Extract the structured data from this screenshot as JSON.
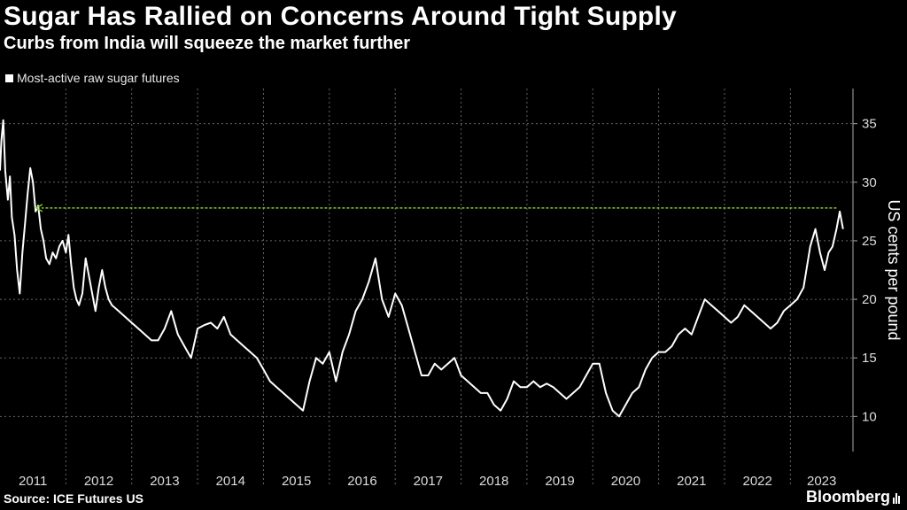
{
  "header": {
    "title": "Sugar Has Rallied on Concerns Around Tight Supply",
    "subtitle": "Curbs from India will squeeze the market further"
  },
  "legend": {
    "label": "Most-active raw sugar futures"
  },
  "footer": {
    "source": "Source: ICE Futures US",
    "brand": "Bloomberg"
  },
  "colors": {
    "background": "#000000",
    "series": "#ffffff",
    "reference_line": "#7ec928",
    "grid": "#666666"
  },
  "chart_data": {
    "type": "line",
    "title": "Sugar Has Rallied on Concerns Around Tight Supply",
    "subtitle": "Curbs from India will squeeze the market further",
    "xlabel": "",
    "ylabel": "US cents per pound",
    "y_axis_side": "right",
    "grid": true,
    "ylim": [
      7,
      38
    ],
    "xlim": [
      2011.0,
      2023.95
    ],
    "x_ticks": [
      "2011",
      "2012",
      "2013",
      "2014",
      "2015",
      "2016",
      "2017",
      "2018",
      "2019",
      "2020",
      "2021",
      "2022",
      "2023"
    ],
    "y_ticks": [
      10,
      15,
      20,
      25,
      30,
      35
    ],
    "legend_position": "top-left",
    "reference_line": {
      "type": "dashed-arrow",
      "y": 27.8,
      "x_from": 2023.7,
      "x_to": 2011.55
    },
    "series": [
      {
        "name": "Most-active raw sugar futures",
        "x": [
          2011.0,
          2011.02,
          2011.05,
          2011.08,
          2011.12,
          2011.15,
          2011.18,
          2011.22,
          2011.26,
          2011.3,
          2011.34,
          2011.38,
          2011.42,
          2011.46,
          2011.5,
          2011.54,
          2011.58,
          2011.62,
          2011.66,
          2011.7,
          2011.75,
          2011.8,
          2011.85,
          2011.9,
          2011.95,
          2012.0,
          2012.04,
          2012.08,
          2012.12,
          2012.16,
          2012.2,
          2012.25,
          2012.3,
          2012.35,
          2012.4,
          2012.45,
          2012.5,
          2012.55,
          2012.6,
          2012.65,
          2012.7,
          2012.8,
          2012.9,
          2013.0,
          2013.1,
          2013.2,
          2013.3,
          2013.4,
          2013.5,
          2013.6,
          2013.7,
          2013.8,
          2013.9,
          2014.0,
          2014.1,
          2014.2,
          2014.3,
          2014.4,
          2014.5,
          2014.6,
          2014.7,
          2014.8,
          2014.9,
          2015.0,
          2015.1,
          2015.2,
          2015.3,
          2015.4,
          2015.5,
          2015.6,
          2015.7,
          2015.8,
          2015.9,
          2016.0,
          2016.1,
          2016.2,
          2016.3,
          2016.4,
          2016.5,
          2016.6,
          2016.7,
          2016.8,
          2016.9,
          2017.0,
          2017.1,
          2017.2,
          2017.3,
          2017.4,
          2017.5,
          2017.6,
          2017.7,
          2017.8,
          2017.9,
          2018.0,
          2018.1,
          2018.2,
          2018.3,
          2018.4,
          2018.5,
          2018.6,
          2018.7,
          2018.8,
          2018.9,
          2019.0,
          2019.1,
          2019.2,
          2019.3,
          2019.4,
          2019.5,
          2019.6,
          2019.7,
          2019.8,
          2019.9,
          2020.0,
          2020.1,
          2020.2,
          2020.3,
          2020.4,
          2020.5,
          2020.6,
          2020.7,
          2020.8,
          2020.9,
          2021.0,
          2021.1,
          2021.2,
          2021.3,
          2021.4,
          2021.5,
          2021.6,
          2021.7,
          2021.8,
          2021.9,
          2022.0,
          2022.1,
          2022.2,
          2022.3,
          2022.4,
          2022.5,
          2022.6,
          2022.7,
          2022.8,
          2022.9,
          2023.0,
          2023.1,
          2023.2,
          2023.3,
          2023.38,
          2023.45,
          2023.52,
          2023.58,
          2023.64,
          2023.7,
          2023.75,
          2023.8
        ],
        "values": [
          31.0,
          33.5,
          35.3,
          31.0,
          28.5,
          30.5,
          27.0,
          25.5,
          22.5,
          20.5,
          24.0,
          26.5,
          29.0,
          31.2,
          30.0,
          27.5,
          28.0,
          26.0,
          25.0,
          23.5,
          23.0,
          24.0,
          23.5,
          24.5,
          25.0,
          24.0,
          25.5,
          23.0,
          21.0,
          20.0,
          19.5,
          20.5,
          23.5,
          22.0,
          20.5,
          19.0,
          21.0,
          22.5,
          21.0,
          20.0,
          19.5,
          19.0,
          18.5,
          18.0,
          17.5,
          17.0,
          16.5,
          16.5,
          17.5,
          19.0,
          17.0,
          16.0,
          15.0,
          17.5,
          17.8,
          18.0,
          17.5,
          18.5,
          17.0,
          16.5,
          16.0,
          15.5,
          15.0,
          14.0,
          13.0,
          12.5,
          12.0,
          11.5,
          11.0,
          10.5,
          13.0,
          15.0,
          14.5,
          15.5,
          13.0,
          15.5,
          17.0,
          19.0,
          20.0,
          21.5,
          23.5,
          20.0,
          18.5,
          20.5,
          19.5,
          17.5,
          15.5,
          13.5,
          13.5,
          14.5,
          14.0,
          14.5,
          15.0,
          13.5,
          13.0,
          12.5,
          12.0,
          12.0,
          11.0,
          10.5,
          11.5,
          13.0,
          12.5,
          12.5,
          13.0,
          12.5,
          12.8,
          12.5,
          12.0,
          11.5,
          12.0,
          12.5,
          13.5,
          14.5,
          14.5,
          12.0,
          10.5,
          10.0,
          11.0,
          12.0,
          12.5,
          14.0,
          15.0,
          15.5,
          15.5,
          16.0,
          17.0,
          17.5,
          17.0,
          18.5,
          20.0,
          19.5,
          19.0,
          18.5,
          18.0,
          18.5,
          19.5,
          19.0,
          18.5,
          18.0,
          17.5,
          18.0,
          19.0,
          19.5,
          20.0,
          21.0,
          24.5,
          26.0,
          24.0,
          22.5,
          24.0,
          24.5,
          26.0,
          27.5,
          26.0
        ]
      }
    ]
  }
}
